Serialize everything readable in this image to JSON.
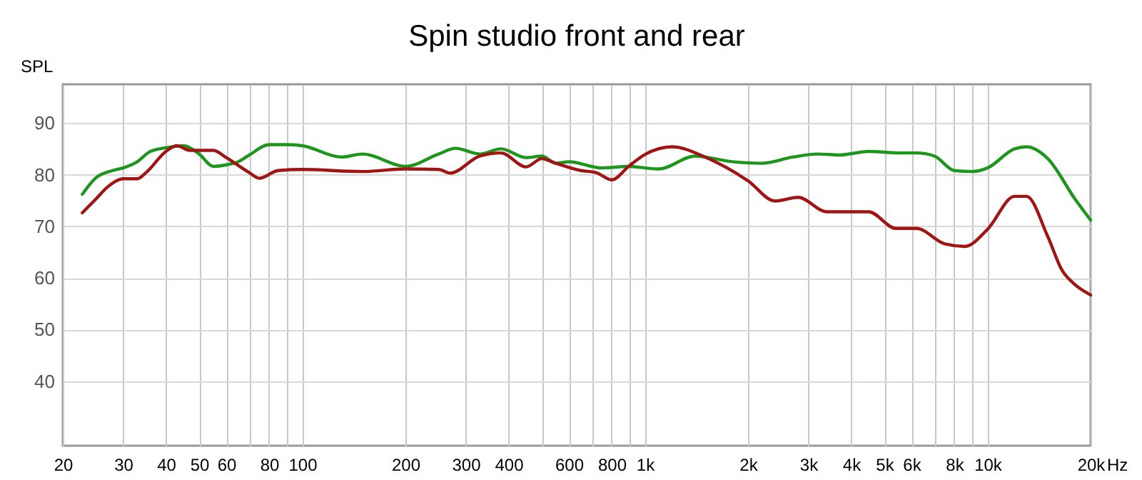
{
  "chart_data": {
    "type": "line",
    "title": "Spin studio front and rear",
    "ylabel": "SPL",
    "log": "x",
    "grid": true,
    "legend": false,
    "xlim": [
      20,
      20000
    ],
    "xticks": [
      20,
      30,
      40,
      50,
      60,
      {
        "value": 70,
        "label": null
      },
      80,
      {
        "value": 90,
        "label": null
      },
      100,
      200,
      300,
      400,
      {
        "value": 500,
        "label": null
      },
      600,
      {
        "value": 700,
        "label": null
      },
      800,
      {
        "value": 900,
        "label": null
      },
      {
        "value": 1000,
        "label": "1k"
      },
      {
        "value": 2000,
        "label": "2k"
      },
      {
        "value": 3000,
        "label": "3k"
      },
      {
        "value": 4000,
        "label": "4k"
      },
      {
        "value": 5000,
        "label": "5k"
      },
      {
        "value": 6000,
        "label": "6k"
      },
      {
        "value": 7000,
        "label": null
      },
      {
        "value": 8000,
        "label": "8k"
      },
      {
        "value": 9000,
        "label": null
      },
      {
        "value": 10000,
        "label": "10k"
      },
      {
        "value": 20000,
        "label": "20k"
      }
    ],
    "ylim": [
      27.5,
      97.5
    ],
    "yticks": [
      40,
      50,
      60,
      70,
      80,
      90
    ],
    "xlabel": "Hz",
    "series": [
      {
        "color": "#1e961e",
        "x": [
          22.8,
          25,
          28,
          30,
          33,
          36,
          40,
          45,
          50,
          55,
          60,
          65,
          70,
          80,
          90,
          100,
          130,
          150,
          200,
          250,
          280,
          330,
          380,
          450,
          500,
          550,
          600,
          750,
          900,
          1000,
          1100,
          1400,
          1800,
          2200,
          2700,
          3200,
          3700,
          4500,
          5500,
          6200,
          7000,
          8000,
          9000,
          10000,
          12000,
          13000,
          15000,
          18000,
          20000
        ],
        "values": [
          76.2,
          79.4,
          80.8,
          81.3,
          82.5,
          84.5,
          85.2,
          85.6,
          84.0,
          81.6,
          81.9,
          82.5,
          83.8,
          85.8,
          85.8,
          85.6,
          83.4,
          84.0,
          81.6,
          84.0,
          85.1,
          84.0,
          85.0,
          83.3,
          83.6,
          82.2,
          82.5,
          81.3,
          81.6,
          81.3,
          81.1,
          83.6,
          82.5,
          82.2,
          83.4,
          84.0,
          83.8,
          84.5,
          84.2,
          84.2,
          83.6,
          80.8,
          80.6,
          81.3,
          85.0,
          85.4,
          83.1,
          75.3,
          71.2
        ]
      },
      {
        "color": "#a01414",
        "x": [
          22.8,
          25,
          27,
          30,
          33,
          35,
          40,
          43,
          47,
          55,
          60,
          70,
          75,
          85,
          100,
          150,
          200,
          250,
          270,
          330,
          380,
          450,
          500,
          550,
          650,
          720,
          800,
          900,
          1000,
          1200,
          1500,
          2000,
          2400,
          2800,
          3400,
          4500,
          5400,
          6200,
          7500,
          8600,
          10000,
          12000,
          13000,
          15000,
          16500,
          18000,
          20000
        ],
        "values": [
          72.6,
          75.3,
          77.6,
          79.2,
          79.2,
          80.4,
          84.5,
          85.6,
          84.7,
          84.7,
          83.3,
          80.4,
          79.3,
          80.8,
          81.0,
          80.6,
          81.1,
          81.0,
          80.3,
          83.6,
          84.2,
          81.5,
          83.1,
          82.2,
          80.8,
          80.4,
          79.0,
          81.7,
          83.9,
          85.4,
          83.4,
          78.8,
          74.9,
          75.6,
          72.8,
          72.8,
          69.6,
          69.6,
          66.6,
          66.1,
          69.4,
          75.8,
          75.8,
          68.0,
          61.5,
          58.7,
          56.7
        ]
      }
    ]
  }
}
